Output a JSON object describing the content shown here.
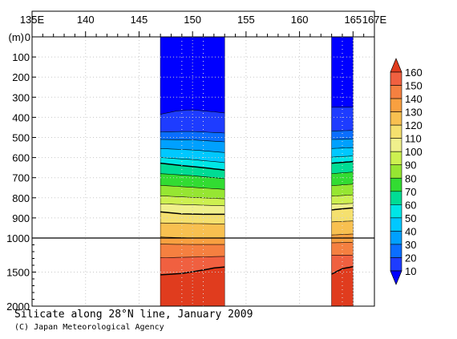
{
  "chart_data": {
    "type": "heatmap",
    "xaxis": {
      "range": [
        135,
        167
      ],
      "ticks": [
        135,
        140,
        145,
        150,
        155,
        160,
        165,
        167
      ],
      "tick_labels": [
        "135E",
        "140",
        "145",
        "150",
        "155",
        "160",
        "165",
        "167E"
      ]
    },
    "yaxis": {
      "unit_label": "(m)",
      "upper_range": [
        0,
        1000
      ],
      "upper_ticks": [
        0,
        100,
        200,
        300,
        400,
        500,
        600,
        700,
        800,
        900,
        1000
      ],
      "lower_range": [
        1000,
        2000
      ],
      "lower_ticks": [
        1000,
        1500,
        2000
      ],
      "upper_tick_labels": [
        "0",
        "100",
        "200",
        "300",
        "400",
        "500",
        "600",
        "700",
        "800",
        "900",
        "1000"
      ],
      "lower_tick_labels": [
        "1500",
        "2000"
      ]
    },
    "colorbar": {
      "levels": [
        10,
        20,
        30,
        40,
        50,
        60,
        70,
        80,
        90,
        100,
        110,
        120,
        130,
        140,
        150,
        160
      ],
      "colors": [
        "#1e3cff",
        "#0a6eff",
        "#00a0ff",
        "#00c8ff",
        "#00e6e6",
        "#00dc94",
        "#32dc32",
        "#96e632",
        "#cdf050",
        "#f0f08c",
        "#f5e06e",
        "#f8c050",
        "#f8a040",
        "#f58040",
        "#f06040",
        "#e84a2c"
      ],
      "under_color": "#0000ff",
      "over_color": "#e03c1e"
    },
    "data_regions": [
      {
        "lon_range": [
          147,
          153
        ],
        "contours": [
          {
            "level": 10,
            "lons": [
              147,
              148.5,
              150,
              151.5,
              153
            ],
            "depths": [
              385,
              368,
              363,
              370,
              378
            ]
          },
          {
            "level": 20,
            "lons": [
              147,
              150,
              153
            ],
            "depths": [
              472,
              470,
              478
            ]
          },
          {
            "level": 30,
            "lons": [
              147,
              150,
              153
            ],
            "depths": [
              510,
              512,
              522
            ]
          },
          {
            "level": 40,
            "lons": [
              147,
              150,
              153
            ],
            "depths": [
              555,
              562,
              575
            ]
          },
          {
            "level": 50,
            "lons": [
              147,
              150,
              153
            ],
            "depths": [
              600,
              610,
              625
            ]
          },
          {
            "level": 60,
            "lons": [
              147,
              149,
              151,
              153
            ],
            "depths": [
              628,
              640,
              650,
              662
            ]
          },
          {
            "level": 70,
            "lons": [
              147,
              150,
              153
            ],
            "depths": [
              680,
              690,
              705
            ]
          },
          {
            "level": 80,
            "lons": [
              147,
              150,
              153
            ],
            "depths": [
              738,
              748,
              758
            ]
          },
          {
            "level": 90,
            "lons": [
              147,
              150,
              153
            ],
            "depths": [
              790,
              798,
              805
            ]
          },
          {
            "level": 100,
            "lons": [
              147,
              150,
              153
            ],
            "depths": [
              830,
              835,
              840
            ]
          },
          {
            "level": 110,
            "lons": [
              147,
              149,
              151,
              153
            ],
            "depths": [
              870,
              880,
              882,
              882
            ]
          },
          {
            "level": 120,
            "lons": [
              147,
              150,
              153
            ],
            "depths": [
              925,
              928,
              930
            ]
          },
          {
            "level": 130,
            "lons": [
              147,
              150,
              153
            ],
            "depths": [
              995,
              1000,
              1003
            ]
          },
          {
            "level": 140,
            "lons": [
              147,
              150,
              153
            ],
            "depths": [
              1090,
              1095,
              1095
            ]
          },
          {
            "level": 150,
            "lons": [
              147,
              150,
              153
            ],
            "depths": [
              1290,
              1280,
              1270
            ]
          },
          {
            "level": 160,
            "lons": [
              147,
              149,
              151,
              152,
              153
            ],
            "depths": [
              1540,
              1520,
              1470,
              1440,
              1425
            ]
          }
        ]
      },
      {
        "lon_range": [
          163,
          165
        ],
        "contours": [
          {
            "level": 10,
            "lons": [
              163,
              165
            ],
            "depths": [
              350,
              350
            ]
          },
          {
            "level": 20,
            "lons": [
              163,
              165
            ],
            "depths": [
              468,
              465
            ]
          },
          {
            "level": 30,
            "lons": [
              163,
              165
            ],
            "depths": [
              510,
              508
            ]
          },
          {
            "level": 40,
            "lons": [
              163,
              165
            ],
            "depths": [
              555,
              550
            ]
          },
          {
            "level": 50,
            "lons": [
              163,
              165
            ],
            "depths": [
              598,
              592
            ]
          },
          {
            "level": 60,
            "lons": [
              163,
              165
            ],
            "depths": [
              628,
              620
            ]
          },
          {
            "level": 70,
            "lons": [
              163,
              165
            ],
            "depths": [
              680,
              672
            ]
          },
          {
            "level": 80,
            "lons": [
              163,
              165
            ],
            "depths": [
              740,
              732
            ]
          },
          {
            "level": 90,
            "lons": [
              163,
              165
            ],
            "depths": [
              792,
              785
            ]
          },
          {
            "level": 100,
            "lons": [
              163,
              165
            ],
            "depths": [
              832,
              828
            ]
          },
          {
            "level": 110,
            "lons": [
              163,
              165
            ],
            "depths": [
              860,
              850
            ]
          },
          {
            "level": 120,
            "lons": [
              163,
              165
            ],
            "depths": [
              920,
              915
            ]
          },
          {
            "level": 130,
            "lons": [
              163,
              165
            ],
            "depths": [
              985,
              980
            ]
          },
          {
            "level": 140,
            "lons": [
              163,
              165
            ],
            "depths": [
              1070,
              1065
            ]
          },
          {
            "level": 150,
            "lons": [
              163,
              165
            ],
            "depths": [
              1250,
              1250
            ]
          },
          {
            "level": 160,
            "lons": [
              163,
              164,
              165
            ],
            "depths": [
              1530,
              1450,
              1420
            ]
          }
        ]
      }
    ],
    "bold_contour_levels": [
      60,
      110,
      160
    ],
    "sample_marker_lons": [
      149,
      151,
      164
    ],
    "grid": true
  },
  "caption": {
    "title": "Silicate along 28°N line, January 2009",
    "credit": "(C) Japan Meteorological Agency"
  }
}
